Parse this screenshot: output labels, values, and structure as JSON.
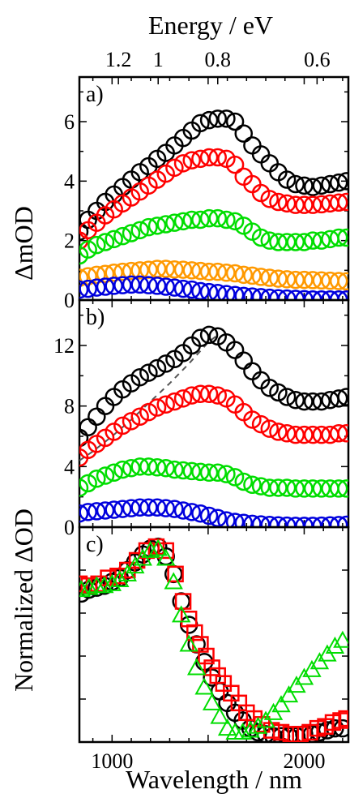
{
  "figure": {
    "top_axis_title": "Energy / eV",
    "bottom_axis_title": "Wavelength / nm"
  },
  "chart_data": [
    {
      "panel_label": "a)",
      "type": "scatter",
      "ylabel": "ΔmOD",
      "xlim": [
        830,
        2230
      ],
      "ylim": [
        0,
        7.5
      ],
      "y_ticks": [
        0,
        2,
        4,
        6
      ],
      "x_ticks": [
        1000,
        1500,
        2000
      ],
      "x_tick_labels_top": [
        "1.2",
        "1",
        "0.8",
        "0.6"
      ],
      "x_top_tick_positions_nm": [
        1033,
        1240,
        1550,
        2067
      ],
      "series_colors": [
        "#000000",
        "#ff0000",
        "#00dd00",
        "#ff9900",
        "#0000dd"
      ],
      "series": [
        {
          "color": "#000000",
          "x": [
            830,
            875,
            920,
            965,
            1010,
            1055,
            1100,
            1145,
            1190,
            1235,
            1280,
            1325,
            1370,
            1415,
            1460,
            1505,
            1550,
            1595,
            1640,
            1685,
            1730,
            1775,
            1820,
            1865,
            1910,
            1955,
            2000,
            2045,
            2090,
            2135,
            2180,
            2220
          ],
          "values": [
            2.3,
            2.7,
            3.0,
            3.3,
            3.55,
            3.8,
            4.05,
            4.3,
            4.5,
            4.75,
            4.95,
            5.2,
            5.45,
            5.7,
            5.95,
            6.05,
            6.1,
            6.1,
            6.0,
            5.6,
            5.2,
            4.9,
            4.6,
            4.3,
            4.05,
            3.9,
            3.85,
            3.8,
            3.85,
            3.9,
            3.95,
            4.0
          ]
        },
        {
          "color": "#ff0000",
          "x": [
            830,
            875,
            920,
            965,
            1010,
            1055,
            1100,
            1145,
            1190,
            1235,
            1280,
            1325,
            1370,
            1415,
            1460,
            1505,
            1550,
            1595,
            1640,
            1685,
            1730,
            1775,
            1820,
            1865,
            1910,
            1955,
            2000,
            2045,
            2090,
            2135,
            2180,
            2220
          ],
          "values": [
            2.0,
            2.35,
            2.6,
            2.85,
            3.05,
            3.25,
            3.45,
            3.65,
            3.85,
            4.05,
            4.25,
            4.45,
            4.6,
            4.7,
            4.75,
            4.8,
            4.8,
            4.75,
            4.55,
            4.15,
            3.9,
            3.6,
            3.4,
            3.3,
            3.25,
            3.2,
            3.2,
            3.2,
            3.22,
            3.25,
            3.28,
            3.3
          ]
        },
        {
          "color": "#00dd00",
          "x": [
            830,
            875,
            920,
            965,
            1010,
            1055,
            1100,
            1145,
            1190,
            1235,
            1280,
            1325,
            1370,
            1415,
            1460,
            1505,
            1550,
            1595,
            1640,
            1685,
            1730,
            1775,
            1820,
            1865,
            1910,
            1955,
            2000,
            2045,
            2090,
            2135,
            2180,
            2220
          ],
          "values": [
            1.5,
            1.7,
            1.85,
            1.95,
            2.05,
            2.15,
            2.25,
            2.35,
            2.45,
            2.5,
            2.55,
            2.6,
            2.65,
            2.7,
            2.7,
            2.75,
            2.75,
            2.7,
            2.65,
            2.5,
            2.3,
            2.1,
            2.0,
            1.95,
            1.95,
            1.95,
            1.95,
            2.0,
            2.0,
            2.05,
            2.1,
            2.1
          ]
        },
        {
          "color": "#ff9900",
          "x": [
            830,
            875,
            920,
            965,
            1010,
            1055,
            1100,
            1145,
            1190,
            1235,
            1280,
            1325,
            1370,
            1415,
            1460,
            1505,
            1550,
            1595,
            1640,
            1685,
            1730,
            1775,
            1820,
            1865,
            1910,
            1955,
            2000,
            2045,
            2090,
            2135,
            2180,
            2220
          ],
          "values": [
            0.75,
            0.8,
            0.85,
            0.88,
            0.92,
            0.95,
            0.98,
            1.0,
            1.02,
            1.05,
            1.05,
            1.03,
            1.02,
            1.0,
            0.98,
            0.95,
            0.95,
            0.92,
            0.9,
            0.85,
            0.82,
            0.78,
            0.75,
            0.72,
            0.7,
            0.68,
            0.68,
            0.67,
            0.66,
            0.65,
            0.64,
            0.63
          ]
        },
        {
          "color": "#0000dd",
          "x": [
            830,
            875,
            920,
            965,
            1010,
            1055,
            1100,
            1145,
            1190,
            1235,
            1280,
            1325,
            1370,
            1415,
            1460,
            1505,
            1550,
            1595,
            1640,
            1685,
            1730,
            1775,
            1820,
            1865,
            1910,
            1955,
            2000,
            2045,
            2090,
            2135,
            2180,
            2220
          ],
          "values": [
            0.35,
            0.38,
            0.42,
            0.45,
            0.48,
            0.5,
            0.52,
            0.52,
            0.5,
            0.48,
            0.45,
            0.42,
            0.38,
            0.35,
            0.3,
            0.27,
            0.24,
            0.2,
            0.17,
            0.14,
            0.12,
            0.1,
            0.08,
            0.06,
            0.05,
            0.04,
            0.03,
            0.02,
            0.02,
            0.02,
            0.02,
            0.02
          ]
        }
      ]
    },
    {
      "panel_label": "b)",
      "type": "scatter",
      "xlim": [
        830,
        2230
      ],
      "ylim": [
        0,
        15
      ],
      "y_ticks": [
        0,
        4,
        8,
        12
      ],
      "series": [
        {
          "color": "#000000",
          "x": [
            830,
            875,
            920,
            965,
            1010,
            1055,
            1100,
            1145,
            1190,
            1235,
            1280,
            1325,
            1370,
            1415,
            1460,
            1505,
            1550,
            1595,
            1640,
            1685,
            1730,
            1775,
            1820,
            1865,
            1910,
            1955,
            2000,
            2045,
            2090,
            2135,
            2180,
            2220
          ],
          "values": [
            5.9,
            6.6,
            7.3,
            8.0,
            8.6,
            9.1,
            9.5,
            9.9,
            10.2,
            10.5,
            10.8,
            11.1,
            11.5,
            12.0,
            12.5,
            12.7,
            12.6,
            12.2,
            11.7,
            11.0,
            10.3,
            9.7,
            9.2,
            8.9,
            8.6,
            8.4,
            8.3,
            8.3,
            8.3,
            8.4,
            8.5,
            8.6
          ]
        },
        {
          "color": "#ff0000",
          "x": [
            830,
            875,
            920,
            965,
            1010,
            1055,
            1100,
            1145,
            1190,
            1235,
            1280,
            1325,
            1370,
            1415,
            1460,
            1505,
            1550,
            1595,
            1640,
            1685,
            1730,
            1775,
            1820,
            1865,
            1910,
            1955,
            2000,
            2045,
            2090,
            2135,
            2180,
            2220
          ],
          "values": [
            4.6,
            5.1,
            5.5,
            5.9,
            6.3,
            6.7,
            7.0,
            7.3,
            7.6,
            7.9,
            8.1,
            8.3,
            8.5,
            8.7,
            8.8,
            8.8,
            8.7,
            8.5,
            8.1,
            7.6,
            7.1,
            6.8,
            6.5,
            6.3,
            6.2,
            6.1,
            6.1,
            6.1,
            6.1,
            6.1,
            6.2,
            6.2
          ]
        },
        {
          "color": "#00dd00",
          "x": [
            830,
            875,
            920,
            965,
            1010,
            1055,
            1100,
            1145,
            1190,
            1235,
            1280,
            1325,
            1370,
            1415,
            1460,
            1505,
            1550,
            1595,
            1640,
            1685,
            1730,
            1775,
            1820,
            1865,
            1910,
            1955,
            2000,
            2045,
            2090,
            2135,
            2180,
            2220
          ],
          "values": [
            2.6,
            2.9,
            3.2,
            3.4,
            3.6,
            3.8,
            3.9,
            4.0,
            4.0,
            3.95,
            3.9,
            3.8,
            3.75,
            3.7,
            3.65,
            3.6,
            3.6,
            3.5,
            3.3,
            3.0,
            2.8,
            2.7,
            2.6,
            2.6,
            2.6,
            2.55,
            2.55,
            2.55,
            2.55,
            2.55,
            2.55,
            2.55
          ]
        },
        {
          "color": "#0000dd",
          "x": [
            830,
            875,
            920,
            965,
            1010,
            1055,
            1100,
            1145,
            1190,
            1235,
            1280,
            1325,
            1370,
            1415,
            1460,
            1505,
            1550,
            1595,
            1640,
            1685,
            1730,
            1775,
            1820,
            1865,
            1910,
            1955,
            2000,
            2045,
            2090,
            2135,
            2180,
            2220
          ],
          "values": [
            0.9,
            1.0,
            1.05,
            1.1,
            1.15,
            1.2,
            1.25,
            1.3,
            1.3,
            1.3,
            1.25,
            1.2,
            1.1,
            1.0,
            0.9,
            0.75,
            0.6,
            0.45,
            0.35,
            0.28,
            0.22,
            0.18,
            0.15,
            0.12,
            0.1,
            0.09,
            0.09,
            0.09,
            0.1,
            0.12,
            0.14,
            0.16
          ]
        }
      ],
      "dashed_line": {
        "color": "#555555",
        "x": [
          830,
          900,
          1000,
          1100,
          1200,
          1300,
          1400,
          1500,
          1540
        ],
        "values": [
          4.4,
          5.0,
          6.0,
          7.1,
          8.3,
          9.5,
          10.8,
          12.2,
          12.6
        ]
      }
    },
    {
      "panel_label": "c)",
      "type": "scatter",
      "ylabel": "Normalized ΔOD",
      "xlim": [
        830,
        2230
      ],
      "ylim": [
        0,
        1.1
      ],
      "x_ticks": [
        1000,
        1500,
        2000
      ],
      "x_tick_labels": [
        "1000",
        "2000"
      ],
      "series": [
        {
          "color": "#000000",
          "marker": "circle",
          "x": [
            840,
            880,
            920,
            960,
            1000,
            1040,
            1080,
            1120,
            1160,
            1200,
            1240,
            1280,
            1320,
            1360,
            1400,
            1440,
            1480,
            1520,
            1560,
            1600,
            1640,
            1680,
            1720,
            1760,
            1800,
            1840,
            1880,
            1920,
            1960,
            2000,
            2040,
            2080,
            2120,
            2160,
            2200
          ],
          "values": [
            0.76,
            0.78,
            0.79,
            0.8,
            0.82,
            0.84,
            0.88,
            0.92,
            0.96,
            0.99,
            1.0,
            0.95,
            0.86,
            0.72,
            0.6,
            0.5,
            0.41,
            0.33,
            0.26,
            0.2,
            0.15,
            0.11,
            0.07,
            0.05,
            0.04,
            0.03,
            0.03,
            0.03,
            0.03,
            0.04,
            0.04,
            0.05,
            0.06,
            0.07,
            0.07
          ]
        },
        {
          "color": "#ff0000",
          "marker": "square",
          "x": [
            830,
            880,
            930,
            980,
            1030,
            1080,
            1130,
            1180,
            1230,
            1280,
            1330,
            1370,
            1400,
            1430,
            1460,
            1490,
            1520,
            1550,
            1580,
            1620,
            1660,
            1700,
            1740,
            1780,
            1830,
            1880,
            1930,
            1980,
            2030,
            2070,
            2110,
            2150,
            2190,
            2220
          ],
          "values": [
            0.81,
            0.8,
            0.81,
            0.84,
            0.85,
            0.88,
            0.93,
            0.98,
            1.0,
            0.98,
            0.86,
            0.72,
            0.63,
            0.56,
            0.5,
            0.44,
            0.38,
            0.34,
            0.3,
            0.25,
            0.2,
            0.15,
            0.12,
            0.09,
            0.06,
            0.05,
            0.04,
            0.04,
            0.05,
            0.07,
            0.08,
            0.1,
            0.11,
            0.12
          ]
        },
        {
          "color": "#00dd00",
          "marker": "triangle",
          "x": [
            840,
            880,
            920,
            960,
            1000,
            1040,
            1080,
            1120,
            1160,
            1200,
            1240,
            1280,
            1320,
            1360,
            1400,
            1440,
            1480,
            1520,
            1560,
            1600,
            1640,
            1680,
            1720,
            1760,
            1800,
            1840,
            1880,
            1920,
            1960,
            2000,
            2040,
            2080,
            2120,
            2160,
            2200
          ],
          "values": [
            0.78,
            0.79,
            0.8,
            0.8,
            0.81,
            0.83,
            0.86,
            0.9,
            0.94,
            0.98,
            0.99,
            0.94,
            0.82,
            0.65,
            0.5,
            0.38,
            0.28,
            0.2,
            0.13,
            0.07,
            0.05,
            0.05,
            0.06,
            0.08,
            0.11,
            0.15,
            0.19,
            0.24,
            0.29,
            0.33,
            0.37,
            0.41,
            0.45,
            0.49,
            0.52
          ]
        }
      ]
    }
  ]
}
